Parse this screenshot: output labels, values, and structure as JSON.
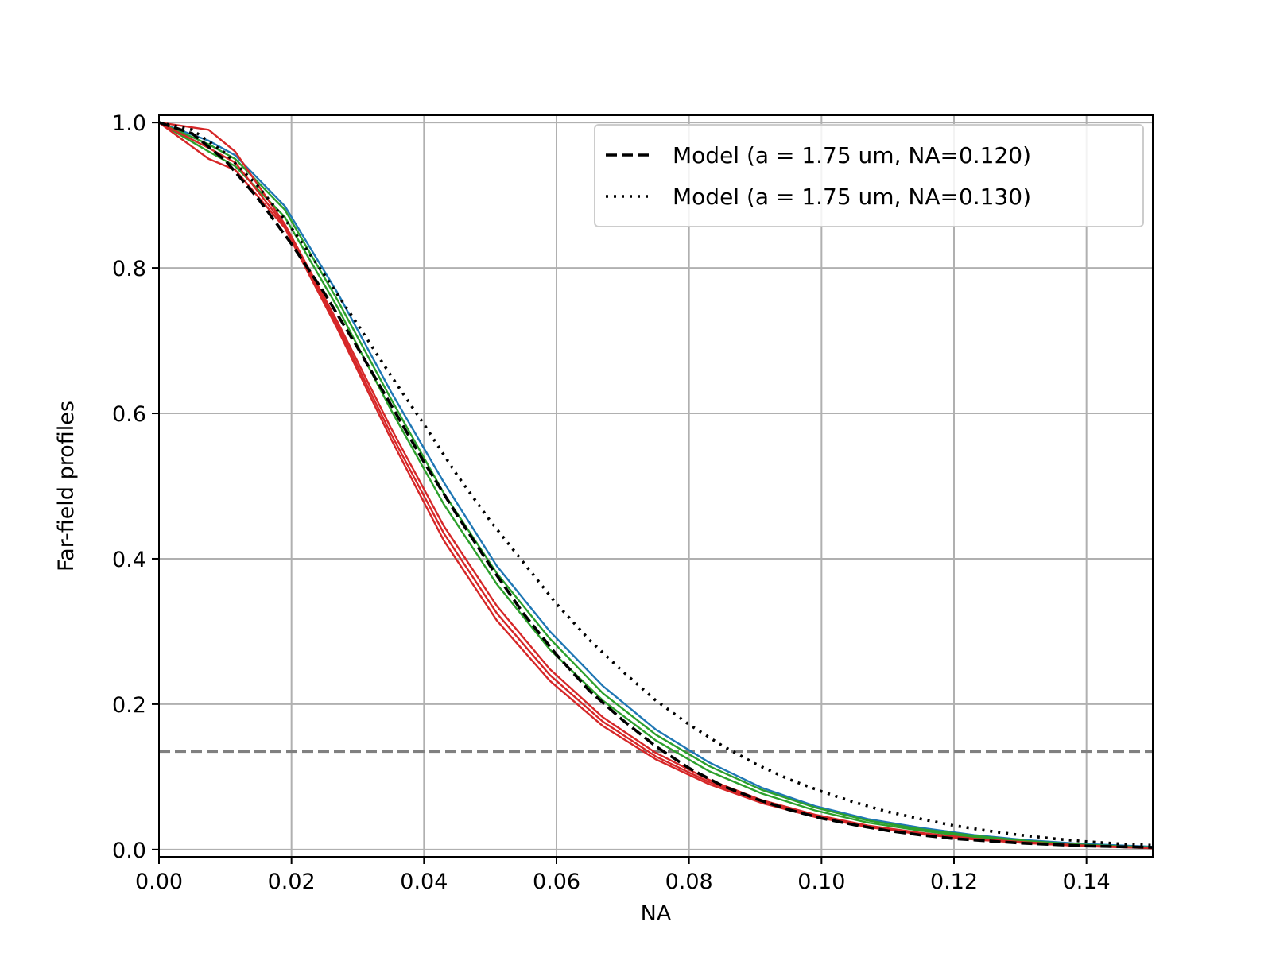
{
  "chart_data": {
    "type": "line",
    "title": "",
    "xlabel": "NA",
    "ylabel": "Far-field profiles",
    "xlim": [
      0.0,
      0.15
    ],
    "ylim": [
      -0.01,
      1.01
    ],
    "x_ticks": [
      0.0,
      0.02,
      0.04,
      0.06,
      0.08,
      0.1,
      0.12,
      0.14
    ],
    "x_tick_labels": [
      "0.00",
      "0.02",
      "0.04",
      "0.06",
      "0.08",
      "0.10",
      "0.12",
      "0.14"
    ],
    "y_ticks": [
      0.0,
      0.2,
      0.4,
      0.6,
      0.8,
      1.0
    ],
    "y_tick_labels": [
      "0.0",
      "0.2",
      "0.4",
      "0.6",
      "0.8",
      "1.0"
    ],
    "grid": true,
    "legend_placement": "top-right",
    "hline": {
      "y": 0.135,
      "color": "#808080",
      "style": "dashed"
    },
    "series": [
      {
        "name": "",
        "color": "#1f77b4",
        "style": "solid",
        "x": [
          0,
          0.0075,
          0.0115,
          0.019,
          0.027,
          0.035,
          0.043,
          0.051,
          0.059,
          0.067,
          0.075,
          0.083,
          0.091,
          0.099,
          0.107,
          0.115,
          0.123,
          0.131,
          0.139,
          0.15
        ],
        "y": [
          1.0,
          0.975,
          0.955,
          0.885,
          0.765,
          0.63,
          0.505,
          0.39,
          0.3,
          0.225,
          0.165,
          0.12,
          0.085,
          0.06,
          0.042,
          0.03,
          0.02,
          0.013,
          0.008,
          0.004
        ]
      },
      {
        "name": "",
        "color": "#2ca02c",
        "style": "solid",
        "x": [
          0,
          0.0075,
          0.0115,
          0.019,
          0.027,
          0.035,
          0.043,
          0.051,
          0.059,
          0.067,
          0.075,
          0.083,
          0.091,
          0.099,
          0.107,
          0.115,
          0.123,
          0.131,
          0.139,
          0.15
        ],
        "y": [
          1.0,
          0.97,
          0.95,
          0.88,
          0.755,
          0.62,
          0.49,
          0.38,
          0.29,
          0.215,
          0.158,
          0.115,
          0.082,
          0.058,
          0.04,
          0.028,
          0.019,
          0.012,
          0.007,
          0.003
        ]
      },
      {
        "name": "",
        "color": "#2ca02c",
        "style": "solid",
        "x": [
          0,
          0.0075,
          0.0115,
          0.019,
          0.027,
          0.035,
          0.043,
          0.051,
          0.059,
          0.067,
          0.075,
          0.083,
          0.091,
          0.099,
          0.107,
          0.115,
          0.123,
          0.131,
          0.139,
          0.15
        ],
        "y": [
          1.0,
          0.96,
          0.94,
          0.87,
          0.745,
          0.605,
          0.475,
          0.365,
          0.275,
          0.205,
          0.15,
          0.108,
          0.077,
          0.054,
          0.037,
          0.026,
          0.017,
          0.011,
          0.006,
          0.003
        ]
      },
      {
        "name": "",
        "color": "#d62728",
        "style": "solid",
        "x": [
          0,
          0.0075,
          0.0115,
          0.019,
          0.027,
          0.035,
          0.043,
          0.051,
          0.059,
          0.067,
          0.075,
          0.083,
          0.091,
          0.099,
          0.107,
          0.115,
          0.123,
          0.131,
          0.139,
          0.15
        ],
        "y": [
          1.0,
          0.99,
          0.96,
          0.86,
          0.725,
          0.58,
          0.445,
          0.335,
          0.248,
          0.182,
          0.133,
          0.096,
          0.068,
          0.048,
          0.033,
          0.023,
          0.015,
          0.01,
          0.006,
          0.002
        ]
      },
      {
        "name": "",
        "color": "#d62728",
        "style": "solid",
        "x": [
          0,
          0.0075,
          0.0115,
          0.019,
          0.027,
          0.035,
          0.043,
          0.051,
          0.059,
          0.067,
          0.075,
          0.083,
          0.091,
          0.099,
          0.107,
          0.115,
          0.123,
          0.131,
          0.139,
          0.15
        ],
        "y": [
          1.0,
          0.95,
          0.935,
          0.855,
          0.715,
          0.565,
          0.425,
          0.315,
          0.232,
          0.17,
          0.124,
          0.09,
          0.064,
          0.045,
          0.031,
          0.021,
          0.014,
          0.009,
          0.005,
          0.002
        ]
      },
      {
        "name": "",
        "color": "#d62728",
        "style": "solid",
        "x": [
          0,
          0.0075,
          0.0115,
          0.019,
          0.027,
          0.035,
          0.043,
          0.051,
          0.059,
          0.067,
          0.075,
          0.083,
          0.091,
          0.099,
          0.107,
          0.115,
          0.123,
          0.131,
          0.139,
          0.15
        ],
        "y": [
          1.0,
          0.965,
          0.945,
          0.858,
          0.72,
          0.572,
          0.435,
          0.325,
          0.24,
          0.176,
          0.128,
          0.093,
          0.066,
          0.046,
          0.032,
          0.022,
          0.014,
          0.009,
          0.005,
          0.002
        ]
      },
      {
        "name": "Model (a = 1.75 um, NA=0.120)",
        "color": "#000000",
        "style": "dashed",
        "x": [
          0,
          0.005,
          0.01,
          0.015,
          0.02,
          0.025,
          0.03,
          0.035,
          0.04,
          0.045,
          0.05,
          0.055,
          0.06,
          0.065,
          0.07,
          0.075,
          0.08,
          0.085,
          0.09,
          0.095,
          0.1,
          0.105,
          0.11,
          0.115,
          0.12,
          0.125,
          0.13,
          0.135,
          0.14,
          0.145,
          0.15
        ],
        "y": [
          1.0,
          0.985,
          0.948,
          0.895,
          0.833,
          0.765,
          0.69,
          0.612,
          0.533,
          0.46,
          0.39,
          0.325,
          0.268,
          0.218,
          0.178,
          0.142,
          0.112,
          0.088,
          0.07,
          0.055,
          0.043,
          0.034,
          0.026,
          0.02,
          0.015,
          0.012,
          0.009,
          0.007,
          0.005,
          0.004,
          0.003
        ]
      },
      {
        "name": "Model (a = 1.75 um, NA=0.130)",
        "color": "#000000",
        "style": "dotted",
        "x": [
          0,
          0.005,
          0.01,
          0.015,
          0.02,
          0.025,
          0.03,
          0.035,
          0.04,
          0.045,
          0.05,
          0.055,
          0.06,
          0.065,
          0.07,
          0.075,
          0.08,
          0.085,
          0.09,
          0.095,
          0.1,
          0.105,
          0.11,
          0.115,
          0.12,
          0.125,
          0.13,
          0.135,
          0.14,
          0.145,
          0.15
        ],
        "y": [
          1.0,
          0.99,
          0.958,
          0.912,
          0.855,
          0.79,
          0.722,
          0.652,
          0.585,
          0.515,
          0.452,
          0.395,
          0.338,
          0.288,
          0.245,
          0.205,
          0.172,
          0.143,
          0.118,
          0.097,
          0.08,
          0.065,
          0.052,
          0.042,
          0.033,
          0.026,
          0.02,
          0.015,
          0.011,
          0.008,
          0.006
        ]
      }
    ]
  }
}
